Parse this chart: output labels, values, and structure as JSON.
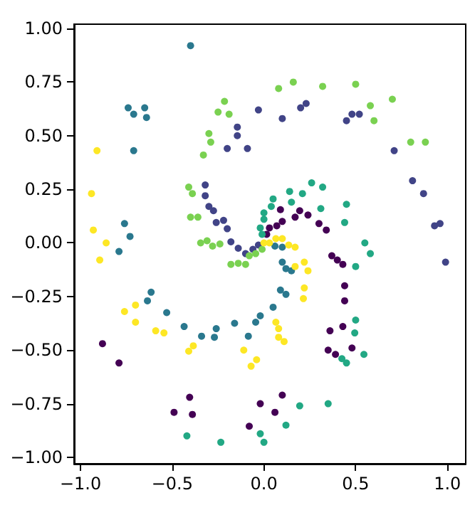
{
  "chart_data": {
    "type": "scatter",
    "marker": "circle",
    "xlim": [
      -1.035,
      1.1
    ],
    "ylim": [
      -1.03,
      1.02
    ],
    "xticks": [
      {
        "value": -1,
        "label": "−1.0"
      },
      {
        "value": -0.5,
        "label": "−0.5"
      },
      {
        "value": 0,
        "label": "0.0"
      },
      {
        "value": 0.5,
        "label": "0.5"
      },
      {
        "value": 1,
        "label": "1.0"
      }
    ],
    "yticks": [
      {
        "value": -1,
        "label": "−1.00"
      },
      {
        "value": -0.75,
        "label": "−0.75"
      },
      {
        "value": -0.5,
        "label": "−0.50"
      },
      {
        "value": -0.25,
        "label": "−0.25"
      },
      {
        "value": 0,
        "label": "0.00"
      },
      {
        "value": 0.25,
        "label": "0.25"
      },
      {
        "value": 0.5,
        "label": "0.50"
      },
      {
        "value": 0.75,
        "label": "0.75"
      },
      {
        "value": 1,
        "label": "1.00"
      }
    ],
    "series": [
      {
        "color": "#440154",
        "x": [
          0.09,
          0.195,
          0.17,
          0.24,
          0.1,
          0.07,
          0.03,
          0.3,
          0.34,
          0.015,
          0.37,
          0.4,
          0.43,
          0.44,
          0.44,
          0.36,
          0.43,
          0.35,
          0.39,
          0.48,
          0.1,
          -0.02,
          0.06,
          -0.88,
          -0.79,
          -0.405,
          -0.49,
          -0.39,
          -0.08
        ],
        "values": [
          0.155,
          0.15,
          0.12,
          0.13,
          0.1,
          0.08,
          0.07,
          0.09,
          0.06,
          0.04,
          -0.06,
          -0.08,
          -0.1,
          -0.2,
          -0.27,
          -0.41,
          -0.39,
          -0.5,
          -0.52,
          -0.49,
          -0.71,
          -0.75,
          -0.79,
          -0.47,
          -0.56,
          -0.72,
          -0.79,
          -0.8,
          -0.855
        ]
      },
      {
        "color": "#414487",
        "x": [
          -0.03,
          -0.145,
          -0.145,
          -0.2,
          -0.09,
          -0.32,
          -0.32,
          -0.3,
          -0.275,
          -0.26,
          -0.22,
          -0.2,
          -0.18,
          -0.14,
          -0.1,
          -0.06,
          -0.03,
          0.1,
          0.2,
          0.23,
          0.45,
          0.48,
          0.52,
          0.71,
          0.81,
          0.87,
          0.93,
          0.96,
          0.99
        ],
        "values": [
          0.62,
          0.54,
          0.5,
          0.44,
          0.44,
          0.27,
          0.22,
          0.17,
          0.15,
          0.095,
          0.105,
          0.066,
          0.005,
          -0.025,
          -0.05,
          -0.03,
          -0.01,
          0.58,
          0.63,
          0.65,
          0.57,
          0.6,
          0.6,
          0.43,
          0.29,
          0.23,
          0.08,
          0.09,
          -0.09
        ]
      },
      {
        "color": "#2a788e",
        "x": [
          -0.4,
          -0.74,
          -0.71,
          -0.65,
          -0.64,
          -0.71,
          -0.76,
          -0.73,
          -0.79,
          0.06,
          0.1,
          0.1,
          0.12,
          0.15,
          0.09,
          0.12,
          0.05,
          -0.02,
          -0.045,
          -0.615,
          -0.635,
          -0.53,
          -0.435,
          -0.34,
          -0.27,
          -0.26,
          -0.16,
          -0.085
        ],
        "values": [
          0.92,
          0.63,
          0.6,
          0.63,
          0.585,
          0.43,
          0.09,
          0.03,
          -0.04,
          -0.015,
          -0.02,
          -0.09,
          -0.12,
          -0.13,
          -0.22,
          -0.24,
          -0.3,
          -0.34,
          -0.37,
          -0.23,
          -0.27,
          -0.325,
          -0.39,
          -0.435,
          -0.44,
          -0.4,
          -0.375,
          -0.435
        ]
      },
      {
        "color": "#22a884",
        "x": [
          0.26,
          0.32,
          0.14,
          0.21,
          0.05,
          0.04,
          0.0,
          0.0,
          0.15,
          0.31,
          0.45,
          0.44,
          0.55,
          -0.02,
          -0.01,
          0.58,
          0.5,
          0.5,
          0.495,
          0.425,
          0.45,
          0.545,
          0.195,
          0.35,
          0.12,
          -0.42,
          -0.235,
          -0.02,
          0.0
        ],
        "values": [
          0.28,
          0.26,
          0.24,
          0.23,
          0.205,
          0.17,
          0.14,
          0.11,
          0.19,
          0.16,
          0.18,
          0.095,
          0.0,
          0.07,
          0.04,
          -0.05,
          -0.11,
          -0.36,
          -0.42,
          -0.54,
          -0.56,
          -0.52,
          -0.76,
          -0.75,
          -0.85,
          -0.9,
          -0.93,
          -0.89,
          -0.93
        ]
      },
      {
        "color": "#7ad151",
        "x": [
          -0.215,
          -0.25,
          -0.19,
          -0.3,
          -0.29,
          -0.33,
          -0.41,
          -0.39,
          -0.4,
          -0.36,
          -0.31,
          0.08,
          0.16,
          0.32,
          0.5,
          0.7,
          0.58,
          0.6,
          0.8,
          0.88,
          -0.345,
          -0.28,
          -0.24,
          -0.18,
          -0.14,
          -0.1,
          -0.08,
          -0.045,
          -0.01
        ],
        "values": [
          0.66,
          0.61,
          0.6,
          0.51,
          0.47,
          0.41,
          0.26,
          0.23,
          0.12,
          0.12,
          0.01,
          0.72,
          0.75,
          0.73,
          0.74,
          0.67,
          0.64,
          0.57,
          0.47,
          0.47,
          0.0,
          -0.015,
          -0.005,
          -0.1,
          -0.095,
          -0.1,
          -0.06,
          -0.05,
          -0.03
        ]
      },
      {
        "color": "#fde725",
        "x": [
          -0.91,
          -0.94,
          -0.93,
          -0.86,
          -0.895,
          0.065,
          0.1,
          0.0,
          0.03,
          0.135,
          0.17,
          0.22,
          0.17,
          0.24,
          0.22,
          0.215,
          0.065,
          0.08,
          0.08,
          0.11,
          -0.76,
          -0.7,
          -0.7,
          -0.59,
          -0.545,
          -0.41,
          -0.385,
          -0.11,
          -0.07,
          -0.04
        ],
        "values": [
          0.43,
          0.23,
          0.06,
          0.0,
          -0.08,
          0.02,
          0.02,
          0.0,
          0.0,
          -0.01,
          -0.02,
          -0.09,
          -0.11,
          -0.13,
          -0.21,
          -0.26,
          -0.37,
          -0.4,
          -0.44,
          -0.46,
          -0.32,
          -0.29,
          -0.37,
          -0.41,
          -0.42,
          -0.505,
          -0.48,
          -0.5,
          -0.575,
          -0.545
        ]
      }
    ]
  }
}
